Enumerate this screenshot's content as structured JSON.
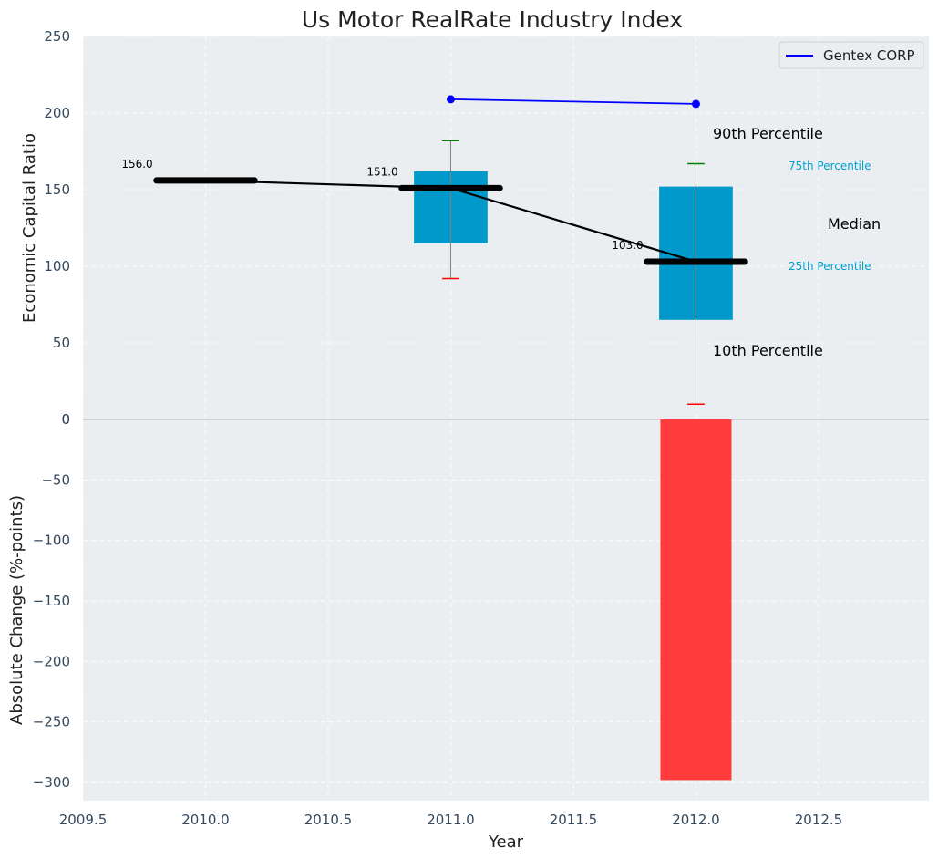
{
  "chart_data": [
    {
      "type": "box",
      "title": "Us Motor RealRate Industry Index",
      "ylabel": "Economic Capital Ratio",
      "ylim": [
        0,
        250
      ],
      "yticks": [
        "0",
        "50",
        "100",
        "150",
        "200",
        "250"
      ],
      "grid": true,
      "legend": {
        "placement": "top-right",
        "entries": [
          "Gentex CORP"
        ]
      },
      "boxes": [
        {
          "x": 2011,
          "p10": 92,
          "p25": 115,
          "p75": 162,
          "p90": 182
        },
        {
          "x": 2012,
          "p10": 10,
          "p25": 65,
          "p75": 152,
          "p90": 167
        }
      ],
      "median": {
        "x": [
          2010,
          2011,
          2012
        ],
        "values": [
          156,
          151,
          103
        ],
        "labels": [
          "156.0",
          "151.0",
          "103.0"
        ]
      },
      "series": [
        {
          "name": "Gentex CORP",
          "x": [
            2011,
            2012
          ],
          "values": [
            209,
            206
          ],
          "color": "#0000ff"
        }
      ],
      "annotations": {
        "p90": "90th Percentile",
        "p75": "75th Percentile",
        "median": "Median",
        "p25": "25th Percentile",
        "p10": "10th Percentile"
      },
      "colors": {
        "box": "#0099cc",
        "median": "#000000",
        "p90_cap": "#008000",
        "p10_cap": "#ff0000",
        "background": "#eaeef0"
      }
    },
    {
      "type": "bar",
      "ylabel": "Absolute Change (%-points)",
      "xlabel": "Year",
      "ylim": [
        -315,
        0
      ],
      "yticks": [
        "0",
        "−50",
        "−100",
        "−150",
        "−200",
        "−250",
        "−300"
      ],
      "xlim": [
        2009.5,
        2012.95
      ],
      "xticks": [
        "2009.5",
        "2010.0",
        "2010.5",
        "2011.0",
        "2011.5",
        "2012.0",
        "2012.5"
      ],
      "x": [
        2012
      ],
      "values": [
        -298
      ],
      "color": "#ff3c3c"
    }
  ]
}
